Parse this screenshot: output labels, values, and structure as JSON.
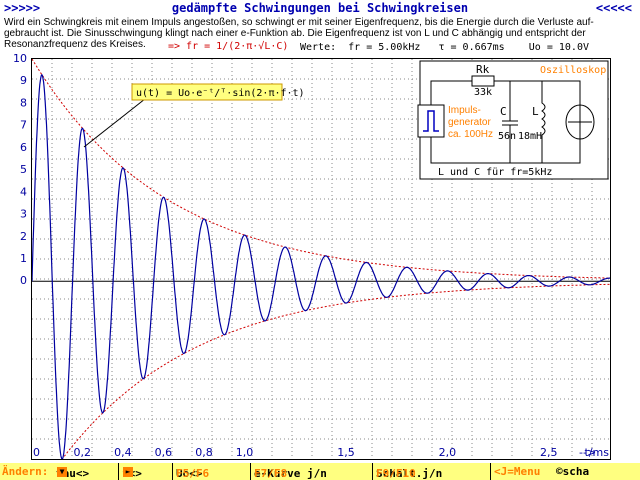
{
  "header": {
    "left_arrows": ">>>>>",
    "title": "gedämpfte Schwingungen bei Schwingkreisen",
    "right_arrows": "<<<<<"
  },
  "description": "Wird ein Schwingkreis mit einem Impuls angestoßen, so schwingt er mit seiner Eigenfrequenz, bis die Energie durch die Verluste auf-gebraucht ist. Die Sinusschwingung klingt nach einer e-Funktion ab. Die Eigenfrequenz ist von L und C abhängig und entspricht der Resonanzfrequenz des Kreises.",
  "formula_fr": "=> fr = 1/(2·π·√L·C)",
  "values_line": "Werte:  fr = 5.00kHz   τ = 0.667ms    Uo = 10.0V",
  "equation_box": "u(t) = Uo·e⁻ᵗ/ᵀ·sin(2·π·f·t)",
  "circuit": {
    "title": "Oszilloskop",
    "rk_label": "Rk",
    "rk_value": "33k",
    "gen_label_1": "Impuls-",
    "gen_label_2": "generator",
    "gen_label_3": "ca. 100Hz",
    "c_label": "C",
    "c_value": "56n",
    "l_label": "L",
    "l_value": "18mH",
    "caption": "L und C für fr=5kHz"
  },
  "bottom": {
    "aendern": "Ändern:",
    "tau": "tau<>",
    "f": "f<>",
    "uo": "Uo<>",
    "uo_keys": "F5/F6",
    "ekurve": "e-Kurve j/n",
    "ekurve_keys": "F7/F8",
    "schalt": "Schalt.j/n",
    "schalt_keys": "F9/F10",
    "menu": "<J=Menu",
    "copyright": "©scha"
  },
  "colors": {
    "signal": "#0000a0",
    "envelope": "#d00000",
    "grid": "#888888",
    "accent": "#ff8000",
    "highlight": "#ffff80"
  },
  "chart_data": {
    "type": "line",
    "title": "",
    "xlabel": "t/ms",
    "x_arrow": "-->",
    "ylabel": "",
    "xlim": [
      0,
      2.85
    ],
    "ylim": [
      -8,
      10
    ],
    "y_ticks": [
      "10",
      "9",
      "8",
      "7",
      "6",
      "5",
      "4",
      "3",
      "2",
      "1",
      "0"
    ],
    "x_ticks": [
      {
        "x": 0,
        "label": "0"
      },
      {
        "x": 0.2,
        "label": "0,2"
      },
      {
        "x": 0.4,
        "label": "0,4"
      },
      {
        "x": 0.6,
        "label": "0,6"
      },
      {
        "x": 0.8,
        "label": "0,8"
      },
      {
        "x": 1.0,
        "label": "1,0"
      },
      {
        "x": 1.5,
        "label": "1,5"
      },
      {
        "x": 2.0,
        "label": "2,0"
      },
      {
        "x": 2.5,
        "label": "2,5"
      }
    ],
    "series": [
      {
        "kind": "signal",
        "Uo": 10.0,
        "f_kHz": 5.0,
        "tau_ms": 0.667
      },
      {
        "kind": "envelope"
      }
    ],
    "grid": true
  }
}
